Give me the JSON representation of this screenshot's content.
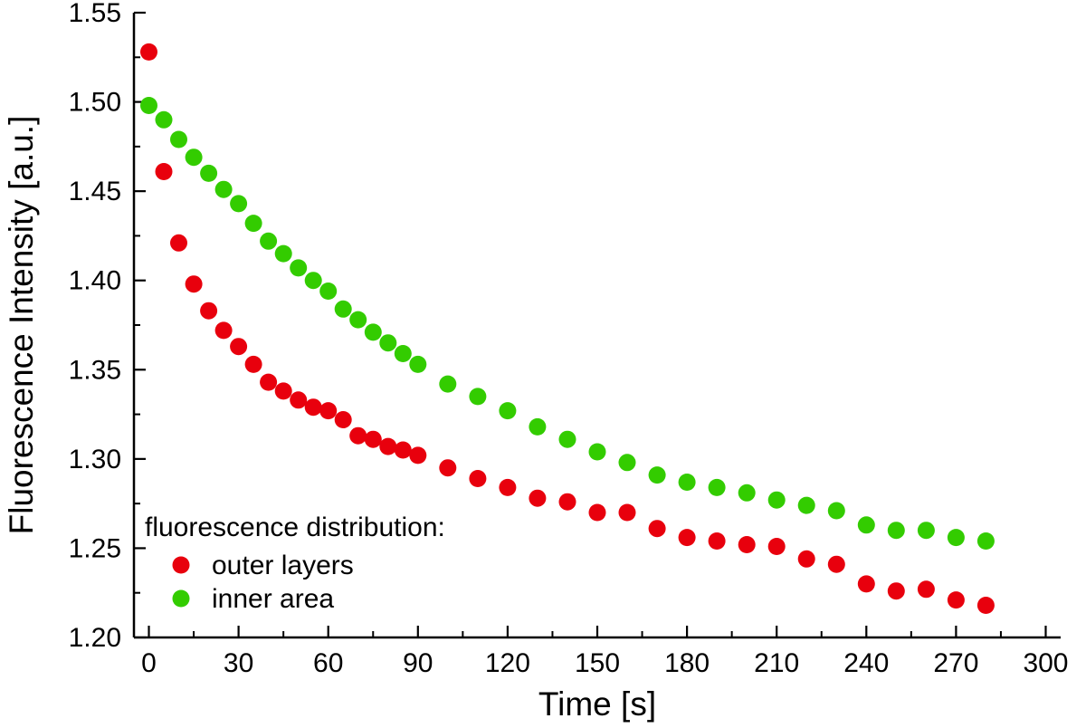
{
  "chart_data": {
    "type": "scatter",
    "title": "",
    "xlabel": "Time [s]",
    "ylabel": "Fluorescence Intensity [a.u.]",
    "xlim": [
      -5,
      305
    ],
    "ylim": [
      1.2,
      1.55
    ],
    "x_ticks": [
      0,
      30,
      60,
      90,
      120,
      150,
      180,
      210,
      240,
      270,
      300
    ],
    "x_tick_labels": [
      "0",
      "30",
      "60",
      "90",
      "120",
      "150",
      "180",
      "210",
      "240",
      "270",
      "300"
    ],
    "y_ticks": [
      1.2,
      1.25,
      1.3,
      1.35,
      1.4,
      1.45,
      1.5,
      1.55
    ],
    "y_tick_labels": [
      "1.20",
      "1.25",
      "1.30",
      "1.35",
      "1.40",
      "1.45",
      "1.50",
      "1.55"
    ],
    "grid": false,
    "legend": {
      "title": "fluorescence distribution:",
      "position": "lower-left"
    },
    "marker": {
      "shape": "circle",
      "radius_px": 9.5
    },
    "axis_color": "#000000",
    "series": [
      {
        "name": "outer layers",
        "color": "#e8000d",
        "x": [
          0,
          5,
          10,
          15,
          20,
          25,
          30,
          35,
          40,
          45,
          50,
          55,
          60,
          65,
          70,
          75,
          80,
          85,
          90,
          100,
          110,
          120,
          130,
          140,
          150,
          160,
          170,
          180,
          190,
          200,
          210,
          220,
          230,
          240,
          250,
          260,
          270,
          280
        ],
        "y": [
          1.528,
          1.461,
          1.421,
          1.398,
          1.383,
          1.372,
          1.363,
          1.353,
          1.343,
          1.338,
          1.333,
          1.329,
          1.327,
          1.322,
          1.313,
          1.311,
          1.307,
          1.305,
          1.302,
          1.295,
          1.289,
          1.284,
          1.278,
          1.276,
          1.27,
          1.27,
          1.261,
          1.256,
          1.254,
          1.252,
          1.251,
          1.244,
          1.241,
          1.23,
          1.226,
          1.227,
          1.221,
          1.218
        ]
      },
      {
        "name": "inner area",
        "color": "#33cc00",
        "x": [
          0,
          5,
          10,
          15,
          20,
          25,
          30,
          35,
          40,
          45,
          50,
          55,
          60,
          65,
          70,
          75,
          80,
          85,
          90,
          100,
          110,
          120,
          130,
          140,
          150,
          160,
          170,
          180,
          190,
          200,
          210,
          220,
          230,
          240,
          250,
          260,
          270,
          280
        ],
        "y": [
          1.498,
          1.49,
          1.479,
          1.469,
          1.46,
          1.451,
          1.443,
          1.432,
          1.422,
          1.415,
          1.407,
          1.4,
          1.394,
          1.384,
          1.378,
          1.371,
          1.365,
          1.359,
          1.353,
          1.342,
          1.335,
          1.327,
          1.318,
          1.311,
          1.304,
          1.298,
          1.291,
          1.287,
          1.284,
          1.281,
          1.277,
          1.274,
          1.271,
          1.263,
          1.26,
          1.26,
          1.256,
          1.254
        ]
      }
    ]
  }
}
